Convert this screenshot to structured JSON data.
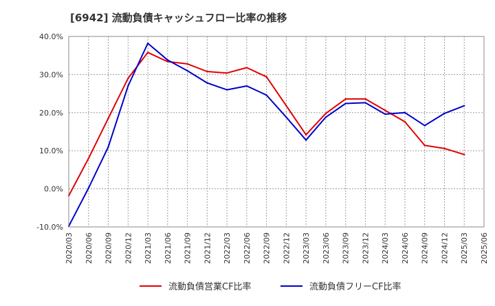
{
  "chart_data": {
    "type": "line",
    "title": "[6942]  流動負債キャッシュフロー比率の推移",
    "xlabel": "",
    "ylabel": "",
    "ylim": [
      -10,
      40
    ],
    "yticks": [
      -10,
      0,
      10,
      20,
      30,
      40
    ],
    "ytick_labels": [
      "-10.0%",
      "0.0%",
      "10.0%",
      "20.0%",
      "30.0%",
      "40.0%"
    ],
    "categories": [
      "2020/03",
      "2020/06",
      "2020/09",
      "2020/12",
      "2021/03",
      "2021/06",
      "2021/09",
      "2021/12",
      "2022/03",
      "2022/06",
      "2022/09",
      "2022/12",
      "2023/03",
      "2023/06",
      "2023/09",
      "2023/12",
      "2024/03",
      "2024/06",
      "2024/09",
      "2024/12",
      "2025/03",
      "2025/06"
    ],
    "grid": true,
    "legend_position": "bottom",
    "series": [
      {
        "name": "流動負債営業CF比率",
        "color": "#e00000",
        "values": [
          -1.8,
          8.0,
          18.5,
          29.0,
          35.8,
          33.4,
          32.8,
          30.8,
          30.4,
          31.8,
          29.4,
          21.8,
          14.2,
          19.8,
          23.6,
          23.6,
          20.6,
          17.6,
          11.4,
          10.6,
          9.0,
          null
        ]
      },
      {
        "name": "流動負債フリーCF比率",
        "color": "#0000cc",
        "values": [
          -9.8,
          0.2,
          11.0,
          27.0,
          38.2,
          33.8,
          31.0,
          27.8,
          26.0,
          27.0,
          24.6,
          18.8,
          12.8,
          18.8,
          22.4,
          22.6,
          19.6,
          20.0,
          16.6,
          19.8,
          21.8,
          null
        ]
      }
    ]
  }
}
